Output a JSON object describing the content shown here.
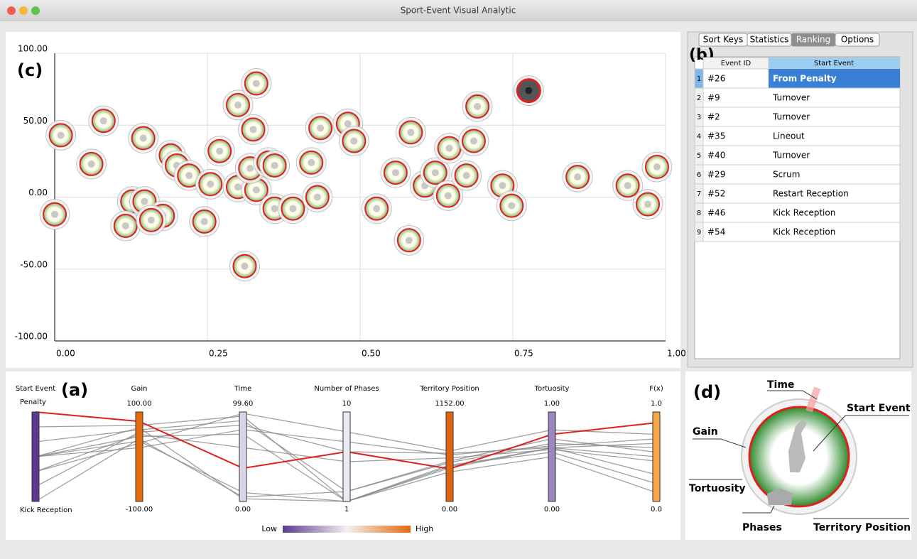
{
  "window": {
    "title": "Sport-Event Visual Analytic"
  },
  "scatter": {
    "label": "(c)",
    "xlim": [
      0,
      1
    ],
    "ylim": [
      -100,
      100
    ],
    "xticks": [
      {
        "value": 0,
        "label": "0.00"
      },
      {
        "value": 0.25,
        "label": "0.25"
      },
      {
        "value": 0.5,
        "label": "0.50"
      },
      {
        "value": 0.75,
        "label": "0.75"
      },
      {
        "value": 1,
        "label": "1.00"
      }
    ],
    "yticks": [
      {
        "value": -100,
        "label": "-100.00"
      },
      {
        "value": -50,
        "label": "-50.00"
      },
      {
        "value": 0,
        "label": "0.00"
      },
      {
        "value": 50,
        "label": "50.00"
      },
      {
        "value": 100,
        "label": "100.00"
      }
    ],
    "x": [
      0.0,
      0.01,
      0.06,
      0.08,
      0.145,
      0.19,
      0.2,
      0.22,
      0.255,
      0.27,
      0.3,
      0.33,
      0.325,
      0.3,
      0.33,
      0.32,
      0.35,
      0.36,
      0.36,
      0.39,
      0.42,
      0.43,
      0.435,
      0.48,
      0.49,
      0.527,
      0.558,
      0.583,
      0.58,
      0.606,
      0.623,
      0.644,
      0.646,
      0.674,
      0.686,
      0.692,
      0.733,
      0.748,
      0.776,
      0.856,
      0.938,
      0.971,
      0.986,
      0.127,
      0.147,
      0.177,
      0.116,
      0.158,
      0.245,
      0.311
    ],
    "y": [
      -12,
      43,
      23,
      53,
      41,
      29,
      22,
      15,
      9,
      32,
      64,
      79,
      47,
      7,
      5,
      20,
      24,
      22,
      -8,
      -8,
      24,
      0,
      48,
      51,
      39,
      -8,
      17,
      45,
      -30,
      8,
      17,
      1,
      34,
      15,
      39,
      63,
      8,
      -6,
      74,
      14,
      8,
      -5,
      21,
      -3,
      -3,
      -13,
      -20,
      -16,
      -17,
      -48
    ],
    "selected": 38
  },
  "panel": {
    "label": "(b)",
    "tabs": [
      "Sort Keys",
      "Statistics",
      "Ranking",
      "Options"
    ],
    "active_tab": 2,
    "table": {
      "headers": [
        "Event ID",
        "Start Event"
      ],
      "rows": [
        [
          "1",
          "#26",
          "From Penalty"
        ],
        [
          "2",
          "#9",
          "Turnover"
        ],
        [
          "3",
          "#2",
          "Turnover"
        ],
        [
          "4",
          "#35",
          "Lineout"
        ],
        [
          "5",
          "#40",
          "Turnover"
        ],
        [
          "6",
          "#29",
          "Scrum"
        ],
        [
          "7",
          "#52",
          "Restart Reception"
        ],
        [
          "8",
          "#46",
          "Kick Reception"
        ],
        [
          "9",
          "#54",
          "Kick Reception"
        ]
      ],
      "selected_row": 0
    }
  },
  "parallel": {
    "label": "(a)",
    "axes": [
      {
        "name": "Start Event",
        "color": "#5b3a8f",
        "categories": [
          "Kick Reception",
          null,
          null,
          null,
          null,
          null,
          "Penalty"
        ]
      },
      {
        "name": "Gain",
        "color": "#e46a0e",
        "ticks": [
          {
            "value": -100,
            "label": "-100.00"
          },
          {
            "value": 100,
            "label": "100.00"
          }
        ]
      },
      {
        "name": "Time",
        "color": "#d9d4e8",
        "ticks": [
          {
            "value": 0,
            "label": "0.00"
          },
          {
            "value": 99.6,
            "label": "99.60"
          }
        ]
      },
      {
        "name": "Number of Phases",
        "color": "#ecebf3",
        "ticks": [
          1,
          10
        ]
      },
      {
        "name": "Territory Position",
        "color": "#e06410",
        "ticks": [
          {
            "value": 0,
            "label": "0.00"
          },
          {
            "value": 1152,
            "label": "1152.00"
          }
        ]
      },
      {
        "name": "Tortuosity",
        "color": "#9b86bd",
        "ticks": [
          {
            "value": 0,
            "label": "0.00"
          },
          {
            "value": 1,
            "label": "1.00"
          }
        ]
      },
      {
        "name": "F(x)",
        "color": "#f5a64a",
        "ticks": [
          {
            "value": 0,
            "label": "0.0"
          },
          {
            "value": 1,
            "label": "1.0"
          }
        ]
      }
    ],
    "lines": [
      {
        "color": "#e02020",
        "values": [
          6,
          79,
          37,
          6,
          420,
          0.75,
          0.88
        ]
      },
      {
        "color": "#888888",
        "values": [
          5,
          70,
          95,
          1,
          450,
          0.6,
          0.5
        ]
      },
      {
        "color": "#888888",
        "values": [
          4,
          60,
          90,
          2,
          500,
          0.65,
          0.6
        ]
      },
      {
        "color": "#888888",
        "values": [
          3,
          20,
          80,
          7,
          600,
          0.62,
          0.7
        ]
      },
      {
        "color": "#888888",
        "values": [
          3,
          35,
          10,
          1,
          430,
          0.6,
          0.3
        ]
      },
      {
        "color": "#888888",
        "values": [
          2,
          50,
          60,
          5,
          560,
          0.58,
          0.45
        ]
      },
      {
        "color": "#888888",
        "values": [
          3,
          45,
          75,
          1,
          470,
          0.55,
          0.2
        ]
      },
      {
        "color": "#888888",
        "values": [
          0,
          40,
          5,
          2,
          520,
          0.7,
          0.55
        ]
      },
      {
        "color": "#888888",
        "values": [
          1,
          55,
          85,
          6,
          620,
          0.6,
          0.65
        ]
      },
      {
        "color": "#888888",
        "values": [
          3,
          65,
          3,
          1,
          380,
          0.5,
          0.1
        ]
      },
      {
        "color": "#888888",
        "values": [
          2,
          30,
          98,
          8,
          650,
          0.8,
          0.75
        ]
      }
    ],
    "legend": {
      "low": "Low",
      "high": "High"
    }
  },
  "glyph": {
    "label": "(d)",
    "time": "Time",
    "start_event": "Start Event",
    "gain": "Gain",
    "tortuosity": "Tortuosity",
    "phases": "Phases",
    "territory": "Territory Position"
  }
}
